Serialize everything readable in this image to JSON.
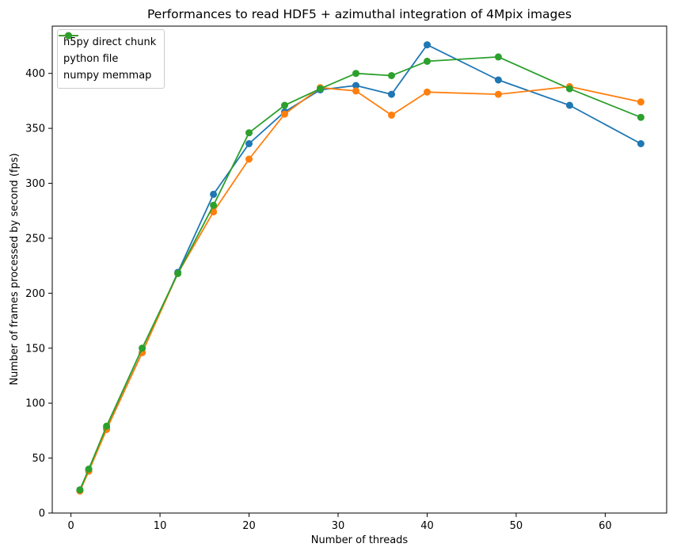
{
  "chart_data": {
    "type": "line",
    "title": "Performances to read HDF5 + azimuthal integration of 4Mpix images",
    "xlabel": "Number of threads",
    "ylabel": "Number of frames processed by second (fps)",
    "x": [
      1,
      2,
      4,
      8,
      12,
      16,
      20,
      24,
      28,
      32,
      36,
      40,
      48,
      56,
      64
    ],
    "series": [
      {
        "name": "h5py direct chunk",
        "color": "#1f77b4",
        "values": [
          21,
          39,
          77,
          146,
          219,
          290,
          336,
          365,
          385,
          389,
          381,
          426,
          394,
          371,
          336
        ]
      },
      {
        "name": "python file",
        "color": "#ff7f0e",
        "values": [
          20,
          38,
          76,
          146,
          218,
          274,
          322,
          363,
          387,
          384,
          362,
          383,
          381,
          388,
          374
        ]
      },
      {
        "name": "numpy memmap",
        "color": "#2ca02c",
        "values": [
          21,
          40,
          79,
          150,
          218,
          280,
          346,
          371,
          386,
          400,
          398,
          411,
          415,
          386,
          360
        ]
      }
    ],
    "xlim": [
      -2.1,
      66.9
    ],
    "ylim": [
      0,
      443
    ],
    "xticks": [
      0,
      10,
      20,
      30,
      40,
      50,
      60
    ],
    "yticks": [
      0,
      50,
      100,
      150,
      200,
      250,
      300,
      350,
      400
    ],
    "grid": false,
    "legend_position": "upper-left",
    "axis_color": "#000000",
    "background_color": "#ffffff"
  }
}
